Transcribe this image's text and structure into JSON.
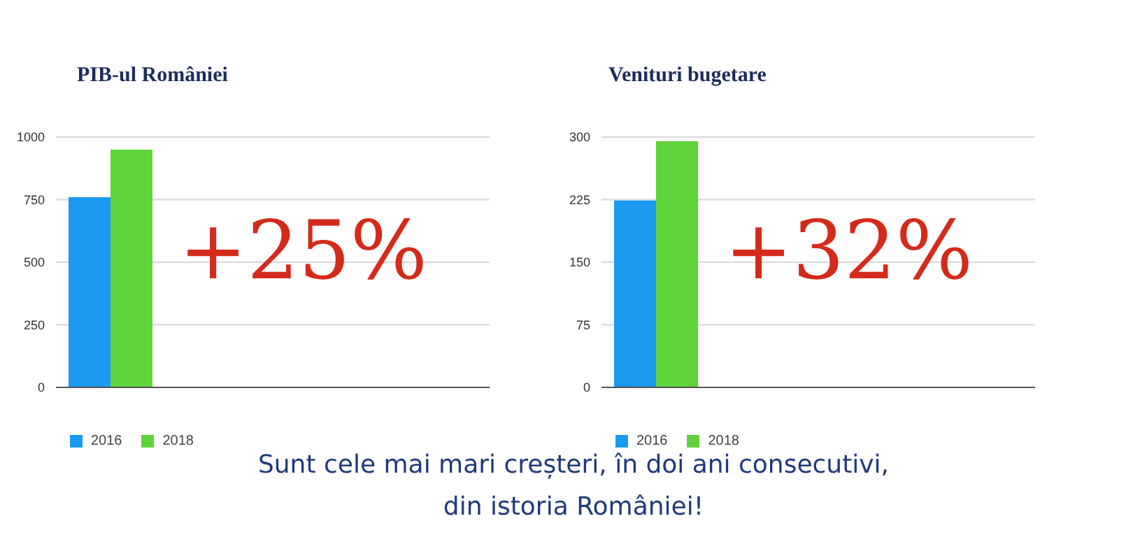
{
  "chart_data": [
    {
      "type": "bar",
      "title": "PIB-ul României",
      "categories": [
        null
      ],
      "series": [
        {
          "name": "2016",
          "color": "#1a9af0",
          "values": [
            760
          ]
        },
        {
          "name": "2018",
          "color": "#5fd33a",
          "values": [
            950
          ]
        }
      ],
      "ylim": [
        0,
        1000
      ],
      "yticks": [
        0,
        250,
        500,
        750,
        1000
      ],
      "grid": "y",
      "legend": "bottom left",
      "tick_labels": "y",
      "annotations": [
        "+25%"
      ]
    },
    {
      "type": "bar",
      "title": "Venituri bugetare",
      "categories": [
        null
      ],
      "series": [
        {
          "name": "2016",
          "color": "#1a9af0",
          "values": [
            224
          ]
        },
        {
          "name": "2018",
          "color": "#5fd33a",
          "values": [
            295
          ]
        }
      ],
      "ylim": [
        0,
        300
      ],
      "yticks": [
        0,
        75,
        150,
        225,
        300
      ],
      "grid": "y",
      "legend": "bottom left",
      "tick_labels": "y",
      "annotations": [
        "+32%"
      ]
    },
    {
      "type": "other",
      "annotations": [
        "Sunt cele mai mari creșteri, în doi ani consecutivi,",
        "din istoria României!"
      ]
    }
  ]
}
